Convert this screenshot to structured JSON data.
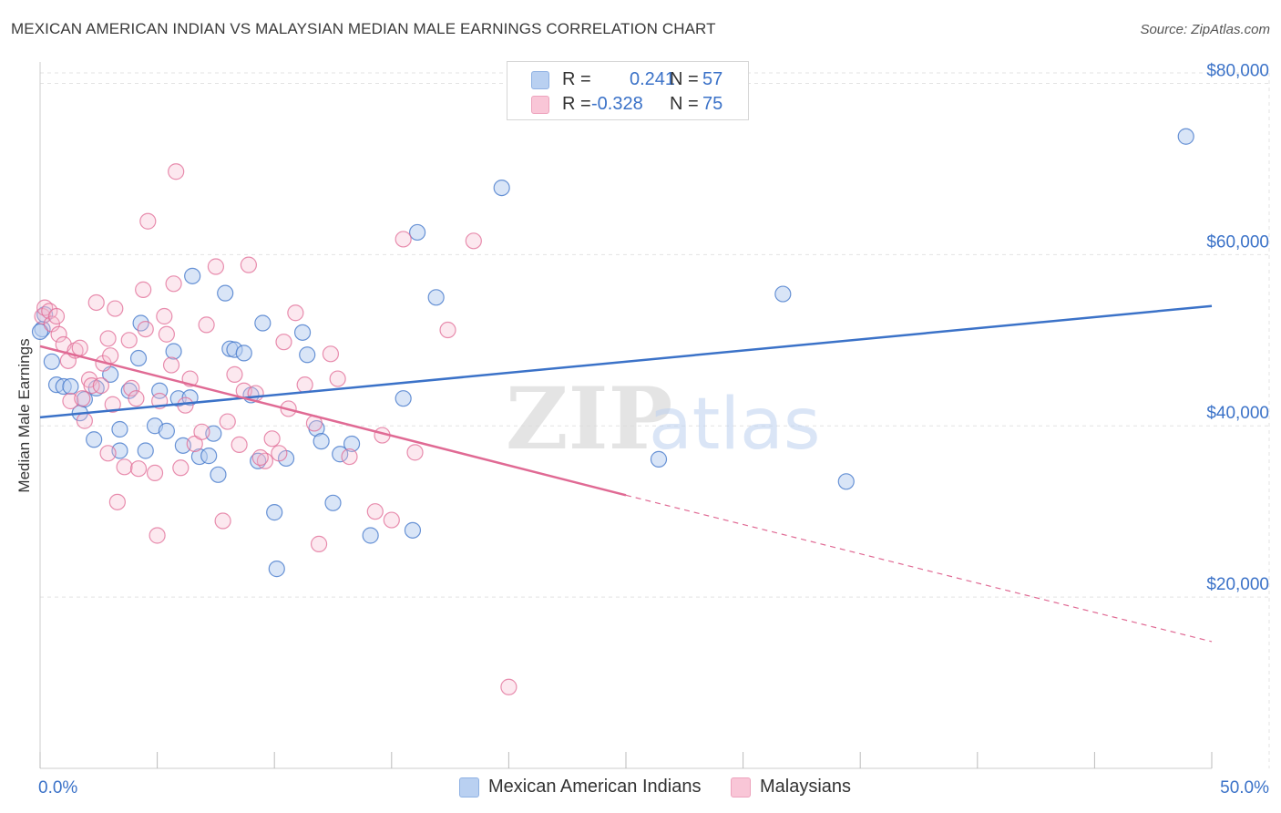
{
  "title": "MEXICAN AMERICAN INDIAN VS MALAYSIAN MEDIAN MALE EARNINGS CORRELATION CHART",
  "source": "Source: ZipAtlas.com",
  "watermark": {
    "part1": "ZIP",
    "part2": "atlas"
  },
  "colors": {
    "blue": "#3b72c8",
    "blue_fill": "#b9d0f1",
    "pink": "#e06a94",
    "pink_fill": "#f6bcd0",
    "grid": "#e3e3e3",
    "axis_text": "#3b72c8"
  },
  "legend": {
    "r_label": "R =",
    "n_label": "N =",
    "rows": [
      {
        "series": "Mexican American Indians",
        "r": "0.241",
        "n": "57"
      },
      {
        "series": "Malaysians",
        "r": "-0.328",
        "n": "75"
      }
    ]
  },
  "bottom_legend": [
    {
      "label": "Mexican American Indians"
    },
    {
      "label": "Malaysians"
    }
  ],
  "chart_data": {
    "type": "scatter",
    "title": "MEXICAN AMERICAN INDIAN VS MALAYSIAN MEDIAN MALE EARNINGS CORRELATION CHART",
    "xlabel": "",
    "ylabel": "Median Male Earnings",
    "xlim": [
      0,
      50
    ],
    "ylim": [
      0,
      82500
    ],
    "x_tick_labels": {
      "min": "0.0%",
      "max": "50.0%"
    },
    "y_ticks": [
      {
        "value": 20000,
        "label": "$20,000"
      },
      {
        "value": 40000,
        "label": "$40,000"
      },
      {
        "value": 60000,
        "label": "$60,000"
      },
      {
        "value": 80000,
        "label": "$80,000"
      }
    ],
    "grid": true,
    "legend_position": "top-center",
    "series": [
      {
        "name": "Mexican American Indians",
        "color": "#3b72c8",
        "r": 0.241,
        "n": 57,
        "trend": {
          "x": [
            0,
            50
          ],
          "y": [
            41000,
            54000
          ],
          "dashed_from": null
        },
        "points": [
          [
            0.1,
            51300
          ],
          [
            0.2,
            53000
          ],
          [
            0.5,
            47500
          ],
          [
            0.7,
            44800
          ],
          [
            1.0,
            44600
          ],
          [
            1.3,
            44600
          ],
          [
            1.7,
            41500
          ],
          [
            1.9,
            43100
          ],
          [
            2.4,
            44400
          ],
          [
            2.3,
            38400
          ],
          [
            3.0,
            46000
          ],
          [
            3.4,
            37100
          ],
          [
            3.4,
            39600
          ],
          [
            3.8,
            44100
          ],
          [
            4.2,
            47900
          ],
          [
            4.3,
            52000
          ],
          [
            4.5,
            37100
          ],
          [
            4.9,
            40000
          ],
          [
            5.1,
            44100
          ],
          [
            5.4,
            39400
          ],
          [
            5.7,
            48700
          ],
          [
            5.9,
            43200
          ],
          [
            6.1,
            37700
          ],
          [
            6.4,
            43300
          ],
          [
            6.5,
            57500
          ],
          [
            6.8,
            36400
          ],
          [
            7.2,
            36500
          ],
          [
            7.4,
            39100
          ],
          [
            7.6,
            34300
          ],
          [
            7.9,
            55500
          ],
          [
            8.1,
            49000
          ],
          [
            8.3,
            48900
          ],
          [
            8.7,
            48500
          ],
          [
            9.0,
            43600
          ],
          [
            9.3,
            35900
          ],
          [
            9.5,
            52000
          ],
          [
            10.0,
            29900
          ],
          [
            10.1,
            23300
          ],
          [
            10.5,
            36200
          ],
          [
            11.4,
            48300
          ],
          [
            11.2,
            50900
          ],
          [
            11.8,
            39700
          ],
          [
            12.0,
            38200
          ],
          [
            12.5,
            31000
          ],
          [
            12.8,
            36700
          ],
          [
            13.3,
            37900
          ],
          [
            14.1,
            27200
          ],
          [
            15.5,
            43200
          ],
          [
            15.9,
            27800
          ],
          [
            16.1,
            62600
          ],
          [
            16.9,
            55000
          ],
          [
            19.7,
            67800
          ],
          [
            26.4,
            36100
          ],
          [
            31.7,
            55400
          ],
          [
            34.4,
            33500
          ],
          [
            48.9,
            73800
          ],
          [
            0.0,
            51000
          ]
        ]
      },
      {
        "name": "Malaysians",
        "color": "#e06a94",
        "r": -0.328,
        "n": 75,
        "trend": {
          "x": [
            0,
            25,
            50
          ],
          "y": [
            49300,
            31900,
            14800
          ],
          "dashed_from": 25
        },
        "points": [
          [
            0.1,
            52800
          ],
          [
            0.2,
            53800
          ],
          [
            0.4,
            53400
          ],
          [
            0.5,
            51900
          ],
          [
            0.7,
            52800
          ],
          [
            0.8,
            50700
          ],
          [
            1.0,
            49500
          ],
          [
            1.2,
            47600
          ],
          [
            1.3,
            42900
          ],
          [
            1.5,
            48800
          ],
          [
            1.7,
            49100
          ],
          [
            1.8,
            43200
          ],
          [
            1.9,
            40600
          ],
          [
            2.1,
            45400
          ],
          [
            2.2,
            44700
          ],
          [
            2.4,
            54400
          ],
          [
            2.6,
            44700
          ],
          [
            2.7,
            47300
          ],
          [
            2.9,
            50200
          ],
          [
            3.0,
            48200
          ],
          [
            3.1,
            42500
          ],
          [
            3.2,
            53700
          ],
          [
            3.3,
            31100
          ],
          [
            3.6,
            35200
          ],
          [
            3.8,
            50000
          ],
          [
            3.9,
            44400
          ],
          [
            4.1,
            43200
          ],
          [
            4.2,
            35000
          ],
          [
            4.4,
            55900
          ],
          [
            4.5,
            51300
          ],
          [
            4.6,
            63900
          ],
          [
            4.9,
            34500
          ],
          [
            5.0,
            27200
          ],
          [
            5.1,
            42900
          ],
          [
            5.3,
            52800
          ],
          [
            5.4,
            50700
          ],
          [
            5.6,
            47100
          ],
          [
            5.7,
            56600
          ],
          [
            5.8,
            69700
          ],
          [
            6.0,
            35100
          ],
          [
            6.2,
            42400
          ],
          [
            6.4,
            45500
          ],
          [
            6.6,
            37900
          ],
          [
            7.1,
            51800
          ],
          [
            7.5,
            58600
          ],
          [
            7.8,
            28900
          ],
          [
            8.0,
            40500
          ],
          [
            8.3,
            46000
          ],
          [
            8.5,
            37800
          ],
          [
            8.7,
            44100
          ],
          [
            8.9,
            58800
          ],
          [
            9.2,
            43800
          ],
          [
            9.6,
            35900
          ],
          [
            9.9,
            38500
          ],
          [
            10.2,
            36800
          ],
          [
            10.4,
            49800
          ],
          [
            10.6,
            42000
          ],
          [
            10.9,
            53200
          ],
          [
            11.3,
            44800
          ],
          [
            11.7,
            40300
          ],
          [
            11.9,
            26200
          ],
          [
            12.4,
            48400
          ],
          [
            13.2,
            36400
          ],
          [
            14.3,
            30000
          ],
          [
            14.6,
            38900
          ],
          [
            15.0,
            29000
          ],
          [
            15.5,
            61800
          ],
          [
            16.0,
            36900
          ],
          [
            17.4,
            51200
          ],
          [
            18.5,
            61600
          ],
          [
            20.0,
            9500
          ],
          [
            9.4,
            36300
          ],
          [
            12.7,
            45500
          ],
          [
            2.9,
            36800
          ],
          [
            6.9,
            39300
          ]
        ]
      }
    ]
  }
}
